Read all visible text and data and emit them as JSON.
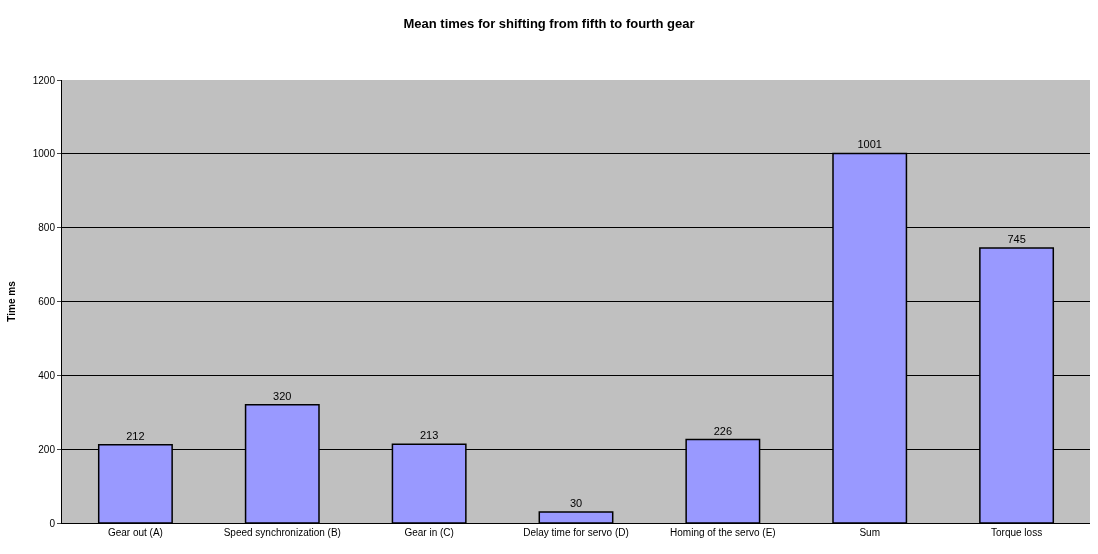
{
  "chart_data": {
    "type": "bar",
    "title": "Mean times for shifting from fifth to fourth gear",
    "ylabel": "Time ms",
    "categories": [
      "Gear out (A)",
      "Speed synchronization (B)",
      "Gear in (C)",
      "Delay time for servo (D)",
      "Homing of the servo (E)",
      "Sum",
      "Torque loss"
    ],
    "values": [
      212,
      320,
      213,
      30,
      226,
      1001,
      745
    ],
    "color": "#9999ff",
    "ylim": [
      0,
      1200
    ],
    "yticks": [
      0,
      200,
      400,
      600,
      800,
      1000,
      1200
    ],
    "grid": "y",
    "data_labels": true,
    "legend": false
  }
}
